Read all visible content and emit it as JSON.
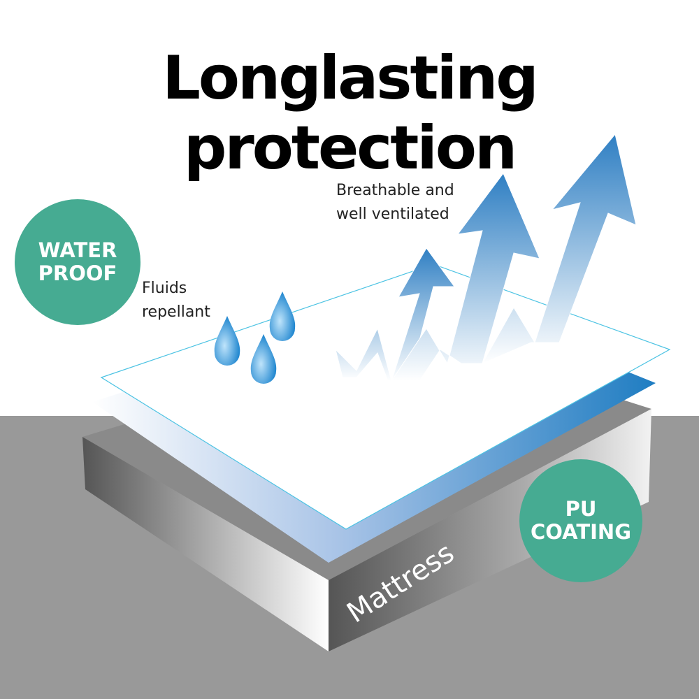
{
  "title": "Longlasting protection",
  "badges": {
    "waterproof": [
      "WATER",
      "PROOF"
    ],
    "pu_coating": [
      "PU",
      "COATING"
    ]
  },
  "labels": {
    "fluids": [
      "Fluids",
      "repellant"
    ],
    "breathable": [
      "Breathable and",
      "well ventilated"
    ],
    "mattress": "Mattress"
  },
  "colors": {
    "badge": "#46ab92",
    "floor": "#999999",
    "cover_blue": "#2a7fc4",
    "arrow_blue": "#2f7fc3",
    "drop_blue": "#3a9ad8"
  }
}
